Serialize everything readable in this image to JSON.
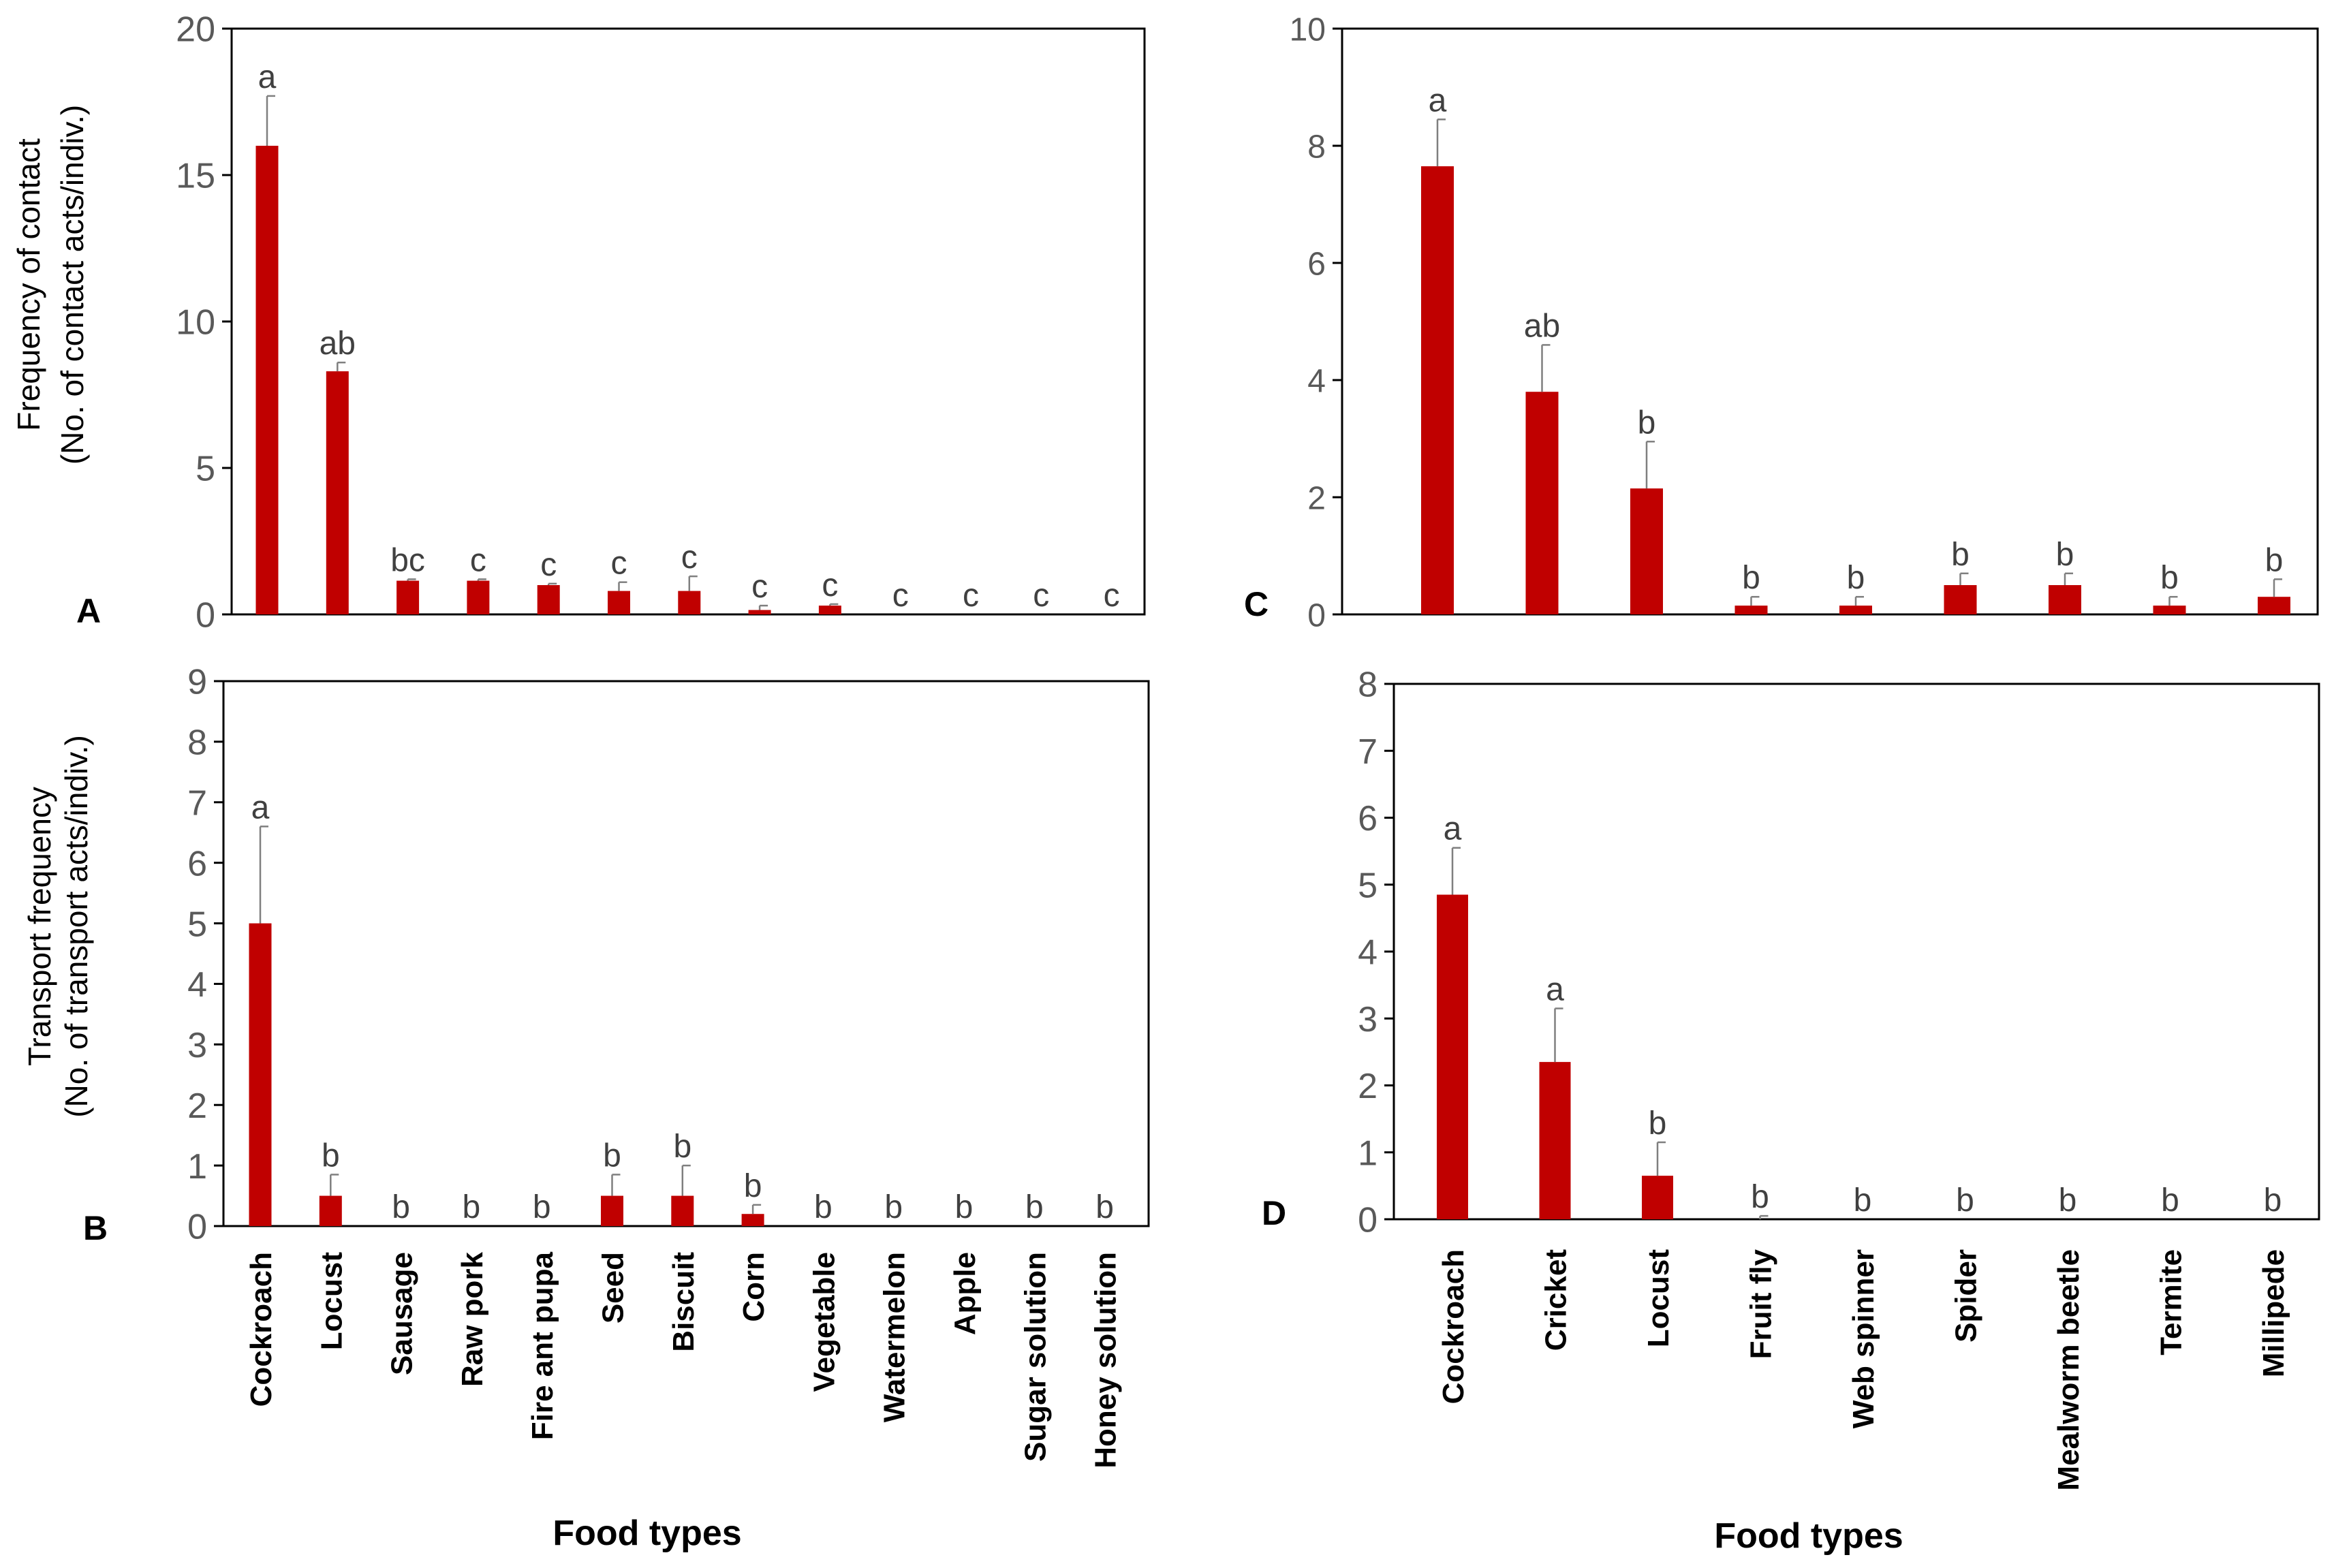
{
  "figure": {
    "colors": {
      "bar": "#c00000",
      "axis": "#000000",
      "tick_text": "#595959",
      "letter_text": "#404040"
    },
    "xlabel_left": "Food types",
    "xlabel_right": "Food types",
    "categories_left": [
      "Cockroach",
      "Locust",
      "Sausage",
      "Raw pork",
      "Fire ant pupa",
      "Seed",
      "Biscuit",
      "Corn",
      "Vegetable",
      "Watermelon",
      "Apple",
      "Sugar solution",
      "Honey solution"
    ],
    "categories_right": [
      "Cockroach",
      "Cricket",
      "Locust",
      "Fruit fly",
      "Web spinner",
      "Spider",
      "Mealworm beetle",
      "Termite",
      "Millipede"
    ]
  },
  "chart_data": [
    {
      "panel": "A",
      "type": "bar",
      "ylabel_line1": "Frequency of contact",
      "ylabel_line2": "(No. of contact acts/indiv.)",
      "ylim": [
        0,
        20
      ],
      "yticks": [
        0,
        5,
        10,
        15,
        20
      ],
      "categories": [
        "Cockroach",
        "Locust",
        "Sausage",
        "Raw pork",
        "Fire ant pupa",
        "Seed",
        "Biscuit",
        "Corn",
        "Vegetable",
        "Watermelon",
        "Apple",
        "Sugar solution",
        "Honey solution"
      ],
      "values": [
        16.0,
        8.3,
        1.15,
        1.15,
        1.0,
        0.8,
        0.8,
        0.15,
        0.3,
        0,
        0,
        0,
        0
      ],
      "errors": [
        1.7,
        0.3,
        0.05,
        0.05,
        0.05,
        0.3,
        0.5,
        0.15,
        0.05,
        0,
        0,
        0,
        0
      ],
      "letters": [
        "a",
        "ab",
        "bc",
        "c",
        "c",
        "c",
        "c",
        "c",
        "c",
        "c",
        "c",
        "c",
        "c"
      ]
    },
    {
      "panel": "B",
      "type": "bar",
      "ylabel_line1": "Transport frequency",
      "ylabel_line2": "(No. of transport acts/indiv.)",
      "ylim": [
        0,
        9
      ],
      "yticks": [
        0,
        1,
        2,
        3,
        4,
        5,
        6,
        7,
        8,
        9
      ],
      "categories": [
        "Cockroach",
        "Locust",
        "Sausage",
        "Raw pork",
        "Fire ant pupa",
        "Seed",
        "Biscuit",
        "Corn",
        "Vegetable",
        "Watermelon",
        "Apple",
        "Sugar solution",
        "Honey solution"
      ],
      "values": [
        5.0,
        0.5,
        0,
        0,
        0,
        0.5,
        0.5,
        0.2,
        0,
        0,
        0,
        0,
        0
      ],
      "errors": [
        1.6,
        0.35,
        0,
        0,
        0,
        0.35,
        0.5,
        0.15,
        0,
        0,
        0,
        0,
        0
      ],
      "letters": [
        "a",
        "b",
        "b",
        "b",
        "b",
        "b",
        "b",
        "b",
        "b",
        "b",
        "b",
        "b",
        "b"
      ]
    },
    {
      "panel": "C",
      "type": "bar",
      "ylim": [
        0,
        10
      ],
      "yticks": [
        0,
        2,
        4,
        6,
        8,
        10
      ],
      "categories": [
        "Cockroach",
        "Cricket",
        "Locust",
        "Fruit fly",
        "Web spinner",
        "Spider",
        "Mealworm beetle",
        "Termite",
        "Millipede"
      ],
      "values": [
        7.65,
        3.8,
        2.15,
        0.15,
        0.15,
        0.5,
        0.5,
        0.15,
        0.3
      ],
      "errors": [
        0.8,
        0.8,
        0.8,
        0.15,
        0.15,
        0.2,
        0.2,
        0.15,
        0.3
      ],
      "letters": [
        "a",
        "ab",
        "b",
        "b",
        "b",
        "b",
        "b",
        "b",
        "b"
      ]
    },
    {
      "panel": "D",
      "type": "bar",
      "ylim": [
        0,
        8
      ],
      "yticks": [
        0,
        1,
        2,
        3,
        4,
        5,
        6,
        7,
        8
      ],
      "categories": [
        "Cockroach",
        "Cricket",
        "Locust",
        "Fruit fly",
        "Web spinner",
        "Spider",
        "Mealworm beetle",
        "Termite",
        "Millipede"
      ],
      "values": [
        4.85,
        2.35,
        0.65,
        0,
        0,
        0,
        0,
        0,
        0
      ],
      "errors": [
        0.7,
        0.8,
        0.5,
        0.05,
        0,
        0,
        0,
        0,
        0
      ],
      "letters": [
        "a",
        "a",
        "b",
        "b",
        "b",
        "b",
        "b",
        "b",
        "b"
      ]
    }
  ]
}
